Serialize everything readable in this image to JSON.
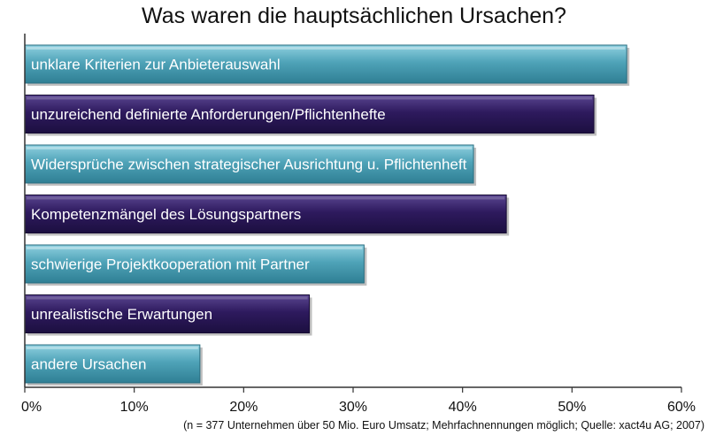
{
  "chart_data": {
    "type": "bar",
    "orientation": "horizontal",
    "title": "Was waren die hauptsächlichen Ursachen?",
    "categories": [
      "unklare Kriterien zur Anbieterauswahl",
      "unzureichend definierte Anforderungen/Pflichtenhefte",
      "Widersprüche zwischen strategischer Ausrichtung u. Pflichtenheft",
      "Kompetenzmängel des Lösungspartners",
      "schwierige Projektkooperation mit Partner",
      "unrealistische Erwartungen",
      "andere Ursachen"
    ],
    "values": [
      55,
      52,
      41,
      44,
      31,
      26,
      16
    ],
    "unit": "%",
    "xlim": [
      0,
      60
    ],
    "xticks": [
      0,
      10,
      20,
      30,
      40,
      50,
      60
    ],
    "xtick_labels": [
      "0%",
      "10%",
      "20%",
      "30%",
      "40%",
      "50%",
      "60%"
    ],
    "grid": false,
    "colors": [
      "#4fa3b8",
      "#2e1a5e",
      "#4fa3b8",
      "#2e1a5e",
      "#4fa3b8",
      "#2e1a5e",
      "#4fa3b8"
    ],
    "footnote": "(n = 377 Unternehmen über 50 Mio. Euro Umsatz; Mehrfachnennungen möglich; Quelle: xact4u AG; 2007)"
  }
}
